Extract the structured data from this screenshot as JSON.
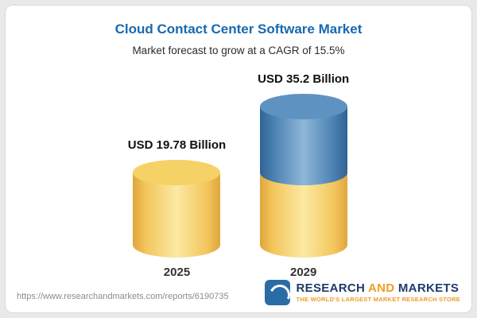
{
  "header": {
    "title": "Cloud Contact Center Software Market",
    "subtitle": "Market forecast to grow at a CAGR of 15.5%"
  },
  "chart_data": {
    "type": "bar",
    "categories": [
      "2025",
      "2029"
    ],
    "values": [
      19.78,
      35.2
    ],
    "value_labels": [
      "USD 19.78 Billion",
      "USD 35.2 Billion"
    ],
    "title": "Cloud Contact Center Software Market",
    "subtitle": "Market forecast to grow at a CAGR of 15.5%",
    "unit": "USD Billion",
    "cagr": "15.5%",
    "ylim": [
      0,
      40
    ],
    "legend_position": "none",
    "grid": false,
    "colors": {
      "bar_2025": "#f2c65a",
      "bar_2029_base": "#f2c65a",
      "bar_2029_growth": "#4e84b5",
      "accent_title": "#1769b0"
    }
  },
  "footer": {
    "url": "https://www.researchandmarkets.com/reports/6190735",
    "logo": {
      "word1": "RESEARCH",
      "word2": "AND",
      "word3": "MARKETS",
      "tagline": "THE WORLD'S LARGEST MARKET RESEARCH STORE"
    }
  }
}
